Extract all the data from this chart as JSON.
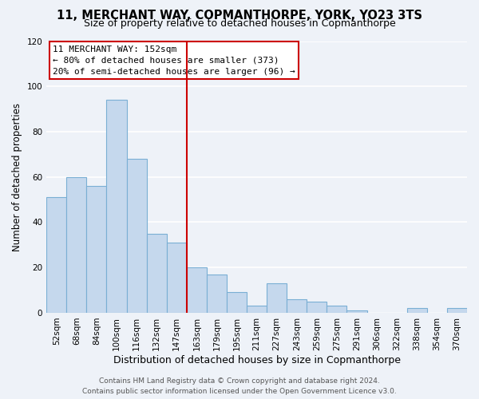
{
  "title": "11, MERCHANT WAY, COPMANTHORPE, YORK, YO23 3TS",
  "subtitle": "Size of property relative to detached houses in Copmanthorpe",
  "xlabel": "Distribution of detached houses by size in Copmanthorpe",
  "ylabel": "Number of detached properties",
  "bar_color": "#c5d8ed",
  "bar_edge_color": "#7aafd4",
  "categories": [
    "52sqm",
    "68sqm",
    "84sqm",
    "100sqm",
    "116sqm",
    "132sqm",
    "147sqm",
    "163sqm",
    "179sqm",
    "195sqm",
    "211sqm",
    "227sqm",
    "243sqm",
    "259sqm",
    "275sqm",
    "291sqm",
    "306sqm",
    "322sqm",
    "338sqm",
    "354sqm",
    "370sqm"
  ],
  "values": [
    51,
    60,
    56,
    94,
    68,
    35,
    31,
    20,
    17,
    9,
    3,
    13,
    6,
    5,
    3,
    1,
    0,
    0,
    2,
    0,
    2
  ],
  "vline_x_index": 7,
  "vline_color": "#cc0000",
  "annotation_title": "11 MERCHANT WAY: 152sqm",
  "annotation_line1": "← 80% of detached houses are smaller (373)",
  "annotation_line2": "20% of semi-detached houses are larger (96) →",
  "ylim": [
    0,
    120
  ],
  "yticks": [
    0,
    20,
    40,
    60,
    80,
    100,
    120
  ],
  "footer1": "Contains HM Land Registry data © Crown copyright and database right 2024.",
  "footer2": "Contains public sector information licensed under the Open Government Licence v3.0.",
  "background_color": "#eef2f8",
  "grid_color": "#ffffff",
  "title_fontsize": 10.5,
  "subtitle_fontsize": 9,
  "xlabel_fontsize": 9,
  "ylabel_fontsize": 8.5,
  "tick_fontsize": 7.5,
  "annotation_fontsize": 8,
  "footer_fontsize": 6.5
}
